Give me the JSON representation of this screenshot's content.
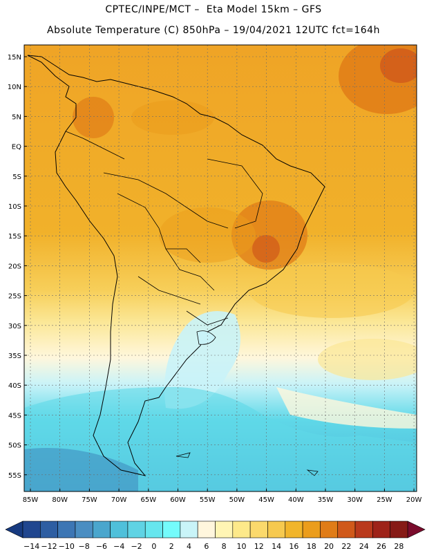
{
  "header": {
    "line1": "CPTEC/INPE/MCT –  Eta Model 15km – GFS",
    "line2": "Absolute Temperature (C) 850hPa – 19/04/2021 12UTC fct=164h"
  },
  "axes": {
    "lat_labels": [
      "15N",
      "10N",
      "5N",
      "EQ",
      "5S",
      "10S",
      "15S",
      "20S",
      "25S",
      "30S",
      "35S",
      "40S",
      "45S",
      "50S",
      "55S"
    ],
    "lon_labels": [
      "85W",
      "80W",
      "75W",
      "70W",
      "65W",
      "60W",
      "55W",
      "50W",
      "45W",
      "40W",
      "35W",
      "30W",
      "25W",
      "20W"
    ]
  },
  "colorbar": {
    "labels": [
      "-14",
      "-12",
      "-10",
      "-8",
      "-6",
      "-4",
      "-2",
      "0",
      "2",
      "4",
      "6",
      "8",
      "10",
      "12",
      "14",
      "16",
      "18",
      "20",
      "22",
      "24",
      "26",
      "28"
    ],
    "colors": [
      "#20468f",
      "#2e5ea2",
      "#3d76b4",
      "#4b8ec2",
      "#4aa6cd",
      "#4fc0da",
      "#5fd3e4",
      "#66e6ee",
      "#74fbfb",
      "#c9f4f8",
      "#fff6dd",
      "#fff5b4",
      "#fde98a",
      "#fbd96c",
      "#f6c94f",
      "#f1b52b",
      "#eb9d1c",
      "#e07c17",
      "#d0591a",
      "#b9391c",
      "#9e2319",
      "#861a16"
    ],
    "left_arrow_color": "#173a80",
    "right_arrow_color": "#7a0b2c"
  }
}
